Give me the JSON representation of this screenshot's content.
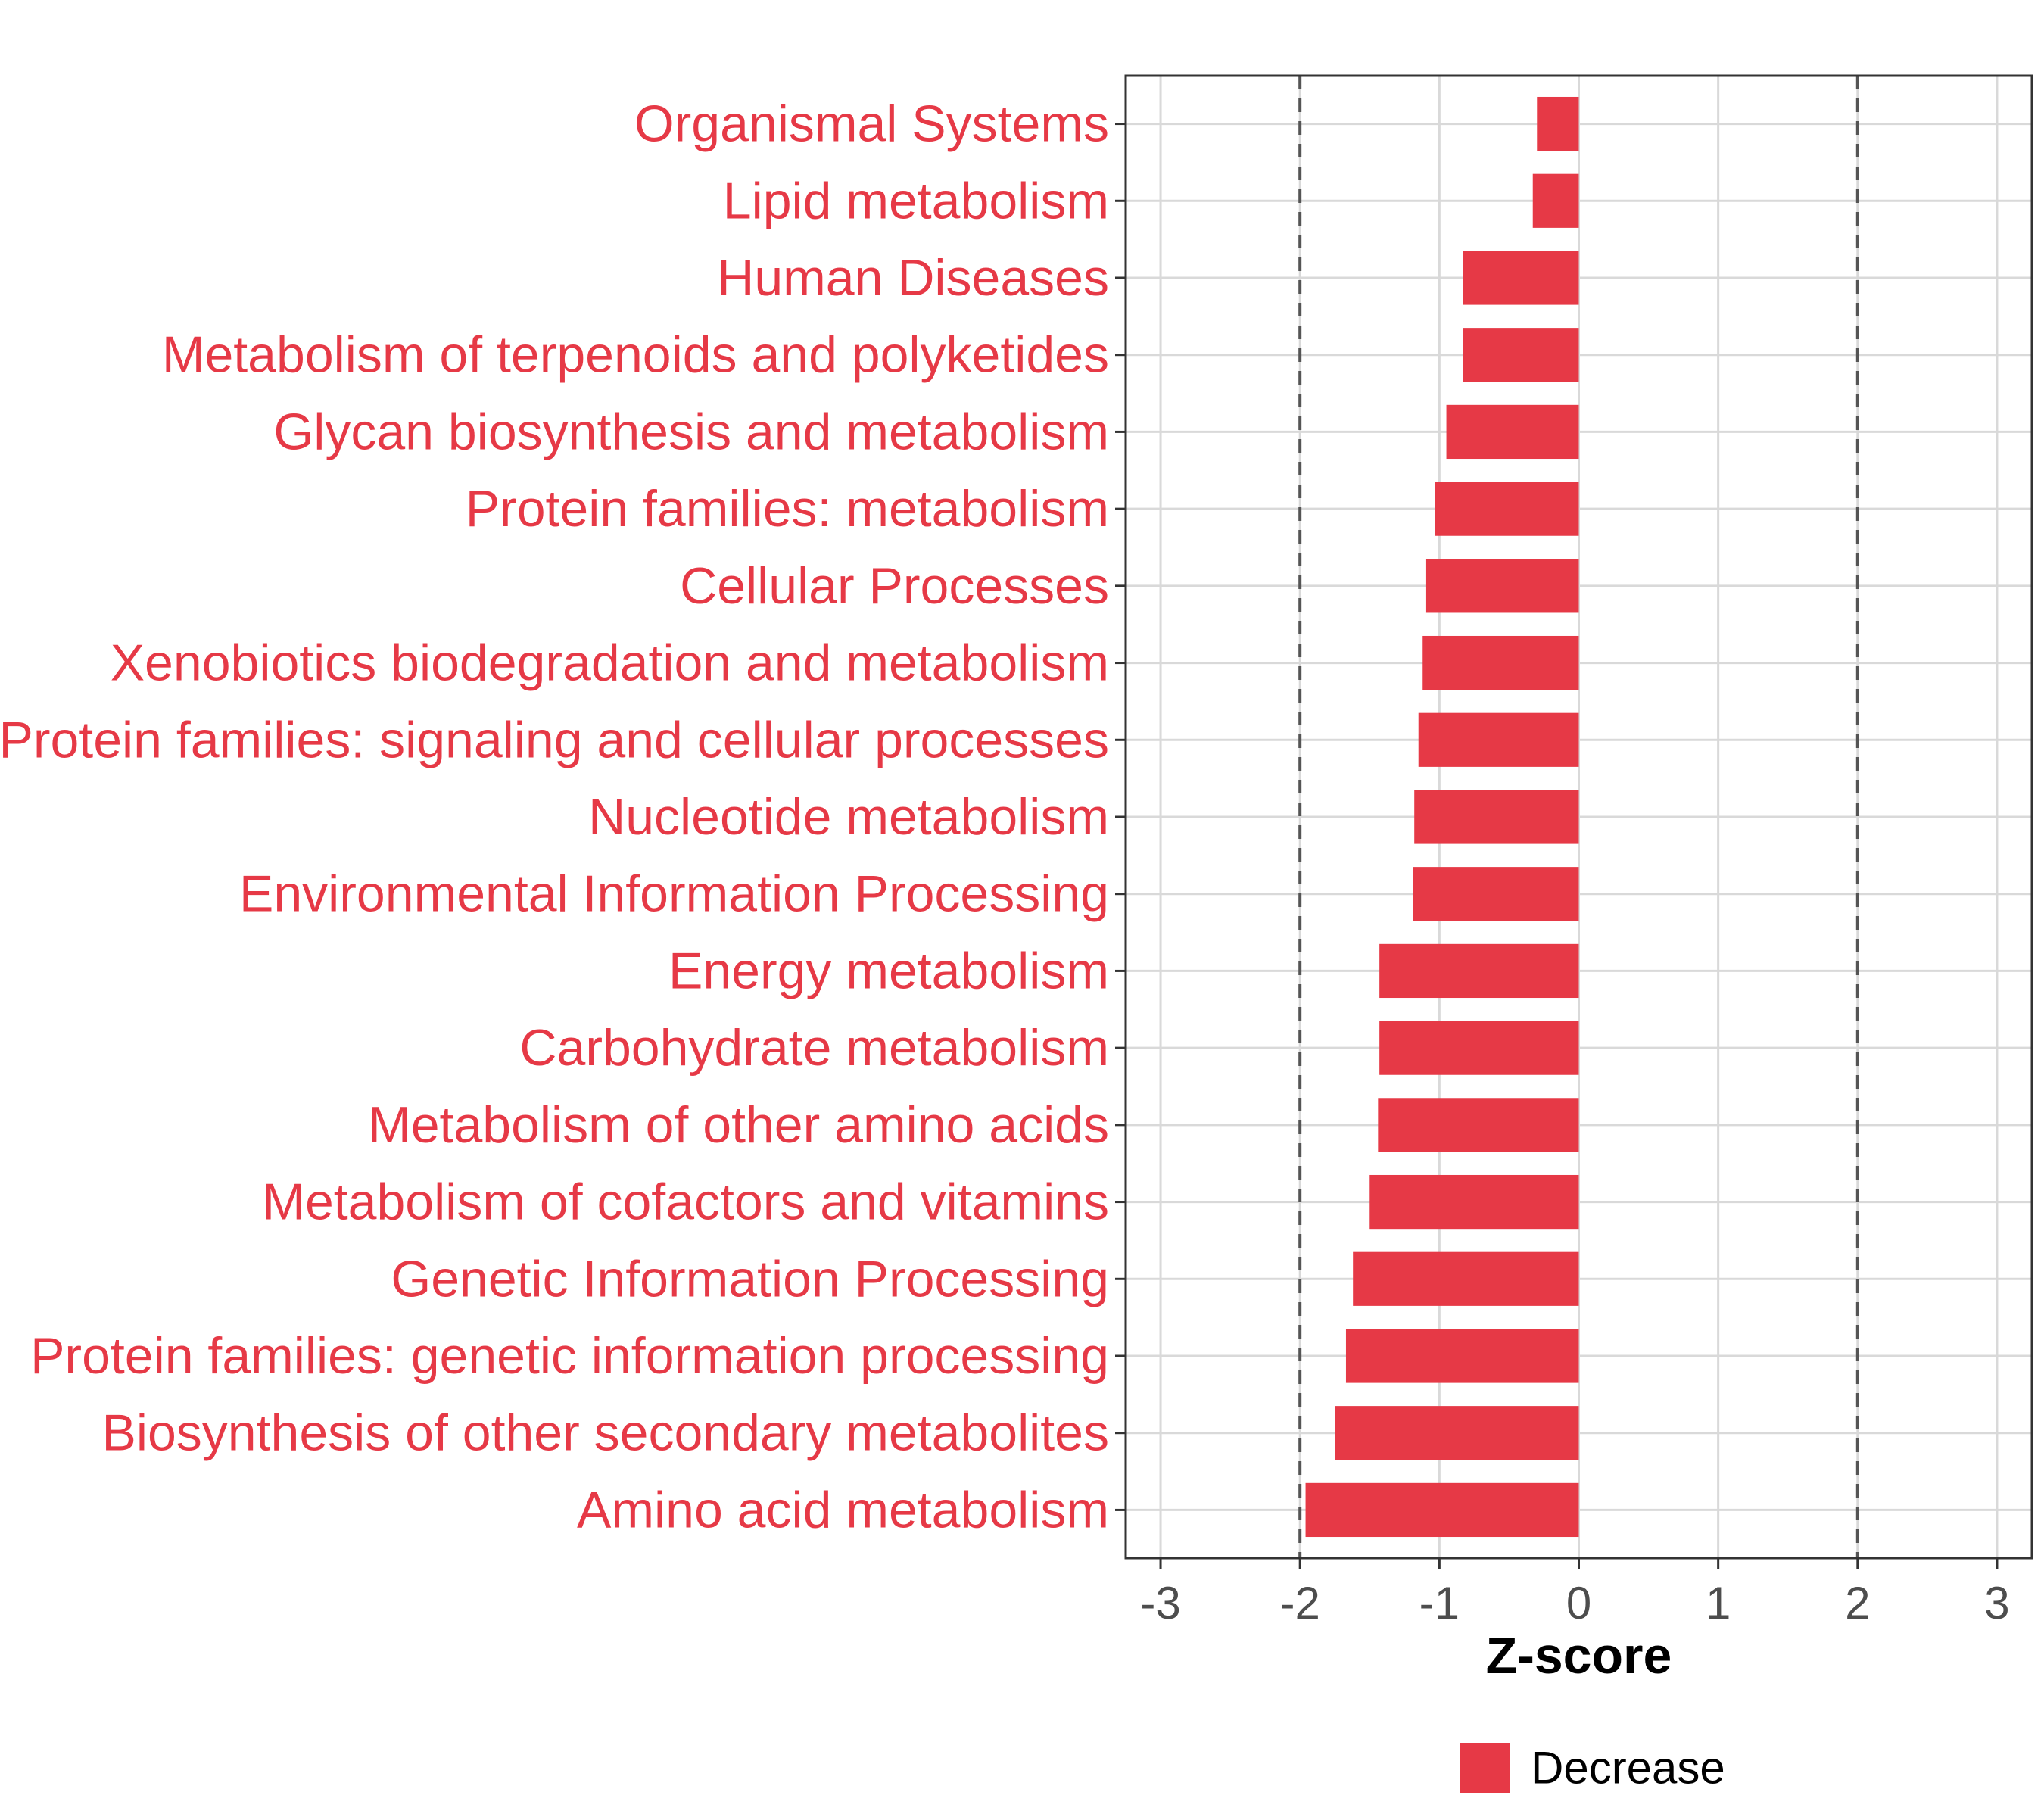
{
  "colors": {
    "bar": "#e63946",
    "label": "#e63946",
    "grid": "#d9d9d9",
    "panel_border": "#333333",
    "threshold_line": "#555555"
  },
  "chart_data": {
    "type": "bar",
    "orientation": "horizontal",
    "categories": [
      "Organismal Systems",
      "Lipid metabolism",
      "Human Diseases",
      "Metabolism of terpenoids and polyketides",
      "Glycan biosynthesis and metabolism",
      "Protein families: metabolism",
      "Cellular Processes",
      "Xenobiotics biodegradation and metabolism",
      "Protein families: signaling and cellular processes",
      "Nucleotide metabolism",
      "Environmental Information Processing",
      "Energy metabolism",
      "Carbohydrate metabolism",
      "Metabolism of other amino acids",
      "Metabolism of cofactors and vitamins",
      "Genetic Information Processing",
      "Protein families: genetic information processing",
      "Biosynthesis of other secondary metabolites",
      "Amino acid metabolism"
    ],
    "values": [
      -0.3,
      -0.33,
      -0.83,
      -0.83,
      -0.95,
      -1.03,
      -1.1,
      -1.12,
      -1.15,
      -1.18,
      -1.19,
      -1.43,
      -1.43,
      -1.44,
      -1.5,
      -1.62,
      -1.67,
      -1.75,
      -1.96
    ],
    "xlabel": "Z-score",
    "ylabel": "",
    "xlim": [
      -3.25,
      3.25
    ],
    "xticks": [
      "-3",
      "-2",
      "-1",
      "0",
      "1",
      "2",
      "3"
    ],
    "xtick_values": [
      -3,
      -2,
      -1,
      0,
      1,
      2,
      3
    ],
    "threshold_lines": [
      -2,
      2
    ],
    "grid": true,
    "legend": {
      "position": "bottom",
      "entries": [
        {
          "label": "Decrease",
          "color": "#e63946"
        }
      ]
    }
  }
}
